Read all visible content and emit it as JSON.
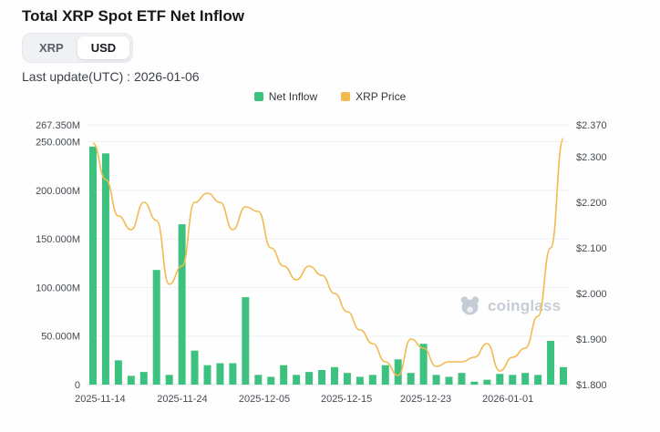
{
  "header": {
    "title": "Total XRP Spot ETF Net Inflow",
    "last_update": "Last update(UTC) : 2026-01-06"
  },
  "toggle": {
    "options": [
      {
        "label": "XRP",
        "selected": false
      },
      {
        "label": "USD",
        "selected": true
      }
    ]
  },
  "legend": [
    {
      "label": "Net Inflow",
      "color": "#3CC27E"
    },
    {
      "label": "XRP Price",
      "color": "#F3BA4F"
    }
  ],
  "watermark": {
    "text": "coinglass"
  },
  "chart_data": {
    "type": "bar",
    "title": "Total XRP Spot ETF Net Inflow",
    "legend_position": "top",
    "grid": true,
    "x_ticks": [
      {
        "label": "2025-11-14",
        "pos": 0.028
      },
      {
        "label": "2025-11-24",
        "pos": 0.198
      },
      {
        "label": "2025-12-05",
        "pos": 0.368
      },
      {
        "label": "2025-12-15",
        "pos": 0.538
      },
      {
        "label": "2025-12-23",
        "pos": 0.702
      },
      {
        "label": "2026-01-01",
        "pos": 0.872
      }
    ],
    "left_axis": {
      "min": 0,
      "max": 267.35,
      "unit": "M USD",
      "ticks": [
        {
          "label": "267.350M",
          "value": 267.35
        },
        {
          "label": "250.000M",
          "value": 250
        },
        {
          "label": "200.000M",
          "value": 200
        },
        {
          "label": "150.000M",
          "value": 150
        },
        {
          "label": "100.000M",
          "value": 100
        },
        {
          "label": "50.000M",
          "value": 50
        },
        {
          "label": "0",
          "value": 0
        }
      ]
    },
    "right_axis": {
      "min": 1.8,
      "max": 2.37,
      "unit": "USD",
      "ticks": [
        {
          "label": "$2.370",
          "value": 2.37
        },
        {
          "label": "$2.300",
          "value": 2.3
        },
        {
          "label": "$2.200",
          "value": 2.2
        },
        {
          "label": "$2.100",
          "value": 2.1
        },
        {
          "label": "$2.000",
          "value": 2.0
        },
        {
          "label": "$1.900",
          "value": 1.9
        },
        {
          "label": "$1.800",
          "value": 1.8
        }
      ]
    },
    "series": [
      {
        "name": "Net Inflow",
        "type": "bar",
        "axis": "left",
        "unit": "M",
        "color": "#3CC27E",
        "values": [
          245,
          238,
          25,
          9,
          13,
          118,
          10,
          165,
          35,
          20,
          22,
          22,
          90,
          10,
          8,
          20,
          10,
          13,
          15,
          18,
          12,
          8,
          10,
          20,
          26,
          12,
          42,
          10,
          8,
          12,
          3,
          5,
          11,
          10,
          12,
          10,
          45,
          18
        ]
      },
      {
        "name": "XRP Price",
        "type": "line",
        "axis": "right",
        "unit": "USD",
        "color": "#F3BA4F",
        "values": [
          2.33,
          2.25,
          2.17,
          2.14,
          2.2,
          2.16,
          2.02,
          2.06,
          2.2,
          2.22,
          2.2,
          2.14,
          2.19,
          2.18,
          2.1,
          2.06,
          2.03,
          2.06,
          2.04,
          2.0,
          1.96,
          1.92,
          1.89,
          1.85,
          1.82,
          1.9,
          1.88,
          1.84,
          1.85,
          1.85,
          1.86,
          1.89,
          1.83,
          1.86,
          1.88,
          1.95,
          2.1,
          2.34
        ]
      }
    ]
  }
}
